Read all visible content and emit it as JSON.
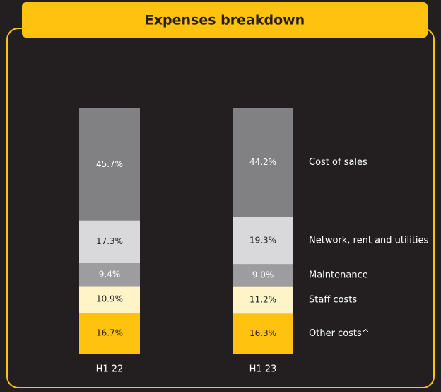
{
  "chart_data": {
    "type": "stacked_bar",
    "title": "Expenses breakdown",
    "categories": [
      "H1 22",
      "H1 23"
    ],
    "series": [
      {
        "name": "Other costs^",
        "color": "#ffc20e",
        "label_color": "#231f20",
        "values": [
          16.7,
          16.3
        ],
        "value_labels": [
          "16.7%",
          "16.3%"
        ]
      },
      {
        "name": "Staff costs",
        "color": "#fff4c8",
        "label_color": "#231f20",
        "values": [
          10.9,
          11.2
        ],
        "value_labels": [
          "10.9%",
          "11.2%"
        ]
      },
      {
        "name": "Maintenance",
        "color": "#9d9d9f",
        "label_color": "#ffffff",
        "values": [
          9.4,
          9.0
        ],
        "value_labels": [
          "9.4%",
          "9.0%"
        ]
      },
      {
        "name": "Network, rent and utilities",
        "color": "#d9d9db",
        "label_color": "#231f20",
        "values": [
          17.3,
          19.3
        ],
        "value_labels": [
          "17.3%",
          "19.3%"
        ]
      },
      {
        "name": "Cost of sales",
        "color": "#818183",
        "label_color": "#ffffff",
        "values": [
          45.7,
          44.2
        ],
        "value_labels": [
          "45.7%",
          "44.2%"
        ]
      }
    ]
  }
}
